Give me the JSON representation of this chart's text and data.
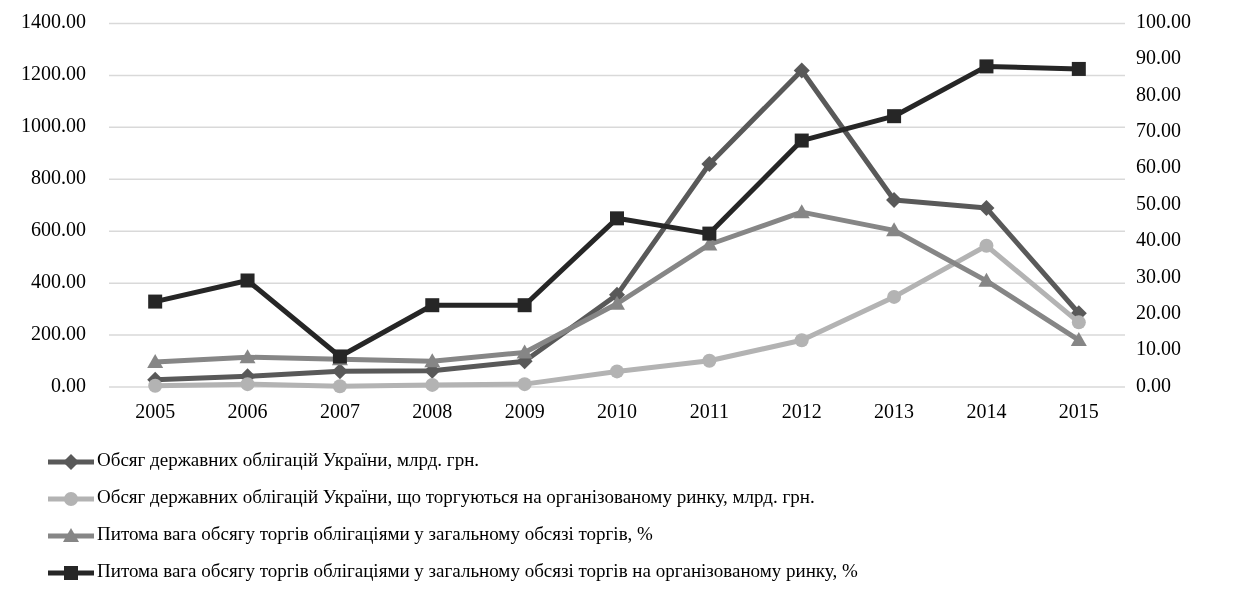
{
  "chart_data": {
    "type": "line",
    "categories": [
      "2005",
      "2006",
      "2007",
      "2008",
      "2009",
      "2010",
      "2011",
      "2012",
      "2013",
      "2014",
      "2015"
    ],
    "series": [
      {
        "name": "Обсяг державних облігацій України, млрд. грн.",
        "color": "#595959",
        "marker": "diamond",
        "values": [
          28,
          41,
          61,
          63,
          99,
          355,
          859,
          1219,
          720,
          689,
          284
        ]
      },
      {
        "name": "Обсяг державних облігацій України, що торгуються на організованому ринку, млрд. грн.",
        "color": "#b3b3b3",
        "marker": "circle",
        "values": [
          5,
          11,
          3,
          8,
          11,
          60,
          101,
          180,
          347,
          544,
          249
        ]
      },
      {
        "name": "Питома вага обсягу торгів облігаціями у загальному обсязі торгів, %",
        "color": "#868686",
        "marker": "triangle",
        "axis": "y2",
        "values": [
          6.9,
          8.2,
          7.6,
          7.1,
          9.5,
          22.9,
          39.2,
          48.1,
          43.1,
          29.2,
          12.9
        ]
      },
      {
        "name": "Питома вага обсягу торгів облігаціями у загальному обсязі торгів на організованому ринку, %",
        "color": "#262626",
        "marker": "square",
        "axis": "y2",
        "values": [
          23.5,
          29.3,
          8.4,
          22.5,
          22.5,
          46.4,
          42.2,
          67.8,
          74.5,
          88.2,
          87.5
        ]
      }
    ],
    "ylim": [
      0,
      1400
    ],
    "yticks": [
      {
        "value": 0,
        "label": "0.00"
      },
      {
        "value": 200,
        "label": "200.00"
      },
      {
        "value": 400,
        "label": "400.00"
      },
      {
        "value": 600,
        "label": "600.00"
      },
      {
        "value": 800,
        "label": "800.00"
      },
      {
        "value": 1000,
        "label": "1000.00"
      },
      {
        "value": 1200,
        "label": "1200.00"
      },
      {
        "value": 1400,
        "label": "1400.00"
      }
    ],
    "y2lim": [
      0,
      100
    ],
    "y2ticks": [
      {
        "value": 0,
        "label": "0.00"
      },
      {
        "value": 10,
        "label": "10.00"
      },
      {
        "value": 20,
        "label": "20.00"
      },
      {
        "value": 30,
        "label": "30.00"
      },
      {
        "value": 40,
        "label": "40.00"
      },
      {
        "value": 50,
        "label": "50.00"
      },
      {
        "value": 60,
        "label": "60.00"
      },
      {
        "value": 70,
        "label": "70.00"
      },
      {
        "value": 80,
        "label": "80.00"
      },
      {
        "value": 90,
        "label": "90.00"
      },
      {
        "value": 100,
        "label": "100.00"
      }
    ],
    "grid": "y",
    "legend": "bottom"
  }
}
